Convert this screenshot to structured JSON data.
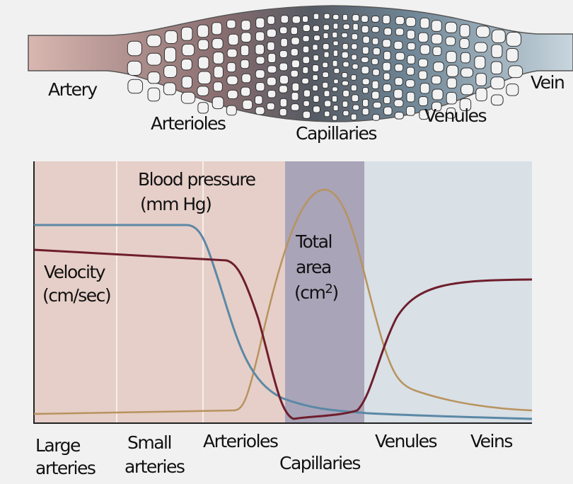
{
  "vessel_diagram": {
    "labels": {
      "artery": "Artery",
      "arterioles": "Arterioles",
      "capillaries": "Capillaries",
      "venules": "Venules",
      "vein": "Vein"
    }
  },
  "graph": {
    "curve_labels": {
      "blood_pressure_1": "Blood pressure",
      "blood_pressure_2": "(mm Hg)",
      "velocity_1": "Velocity",
      "velocity_2": "(cm/sec)",
      "area_1": "Total",
      "area_2": "area",
      "area_3": "(cm",
      "area_sup": "2",
      "area_4": ")"
    },
    "x_labels": {
      "large_1": "Large",
      "large_2": "arteries",
      "small_1": "Small",
      "small_2": "arteries",
      "arterioles": "Arterioles",
      "capillaries": "Capillaries",
      "venules": "Venules",
      "veins": "Veins"
    },
    "colors": {
      "blood_pressure": "#5b88a6",
      "velocity": "#6e1e2c",
      "total_area": "#b8935e",
      "arterial_zone": "#e6cfc8",
      "capillary_zone": "#a9a4b8",
      "venous_zone": "#d9e0e6"
    }
  }
}
